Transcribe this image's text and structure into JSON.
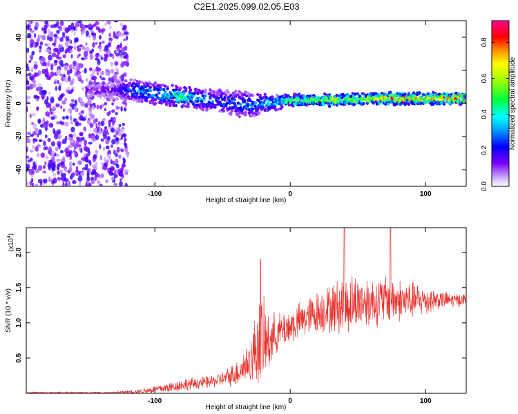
{
  "title": "C2E1.2025.099.02.05.E03",
  "colors": {
    "snr_line": "#e8322e",
    "rainbow_low": "#d9c2ff",
    "rainbow_high": "#ff0080"
  },
  "chart_data": [
    {
      "type": "heatmap",
      "name": "spectrogram",
      "xlabel": "Height of straight line (km)",
      "ylabel": "Frequency (Hz)",
      "xlim": [
        -195,
        130
      ],
      "ylim": [
        -50,
        50
      ],
      "x_ticks": [
        -100,
        0,
        100
      ],
      "y_ticks": [
        -40,
        -20,
        0,
        20,
        40
      ],
      "grid": false,
      "ridge": {
        "x": [
          -150,
          -130,
          -115,
          -100,
          -90,
          -80,
          -70,
          -60,
          -50,
          -40,
          -30,
          -20,
          -10,
          0,
          20,
          40,
          60,
          80,
          100,
          120,
          130
        ],
        "freq": [
          8,
          8,
          8,
          6,
          5,
          4,
          3,
          2,
          1,
          0,
          -1,
          0,
          1,
          2,
          2,
          2,
          3,
          3,
          3,
          3,
          3
        ],
        "halfwidth": [
          3,
          4,
          6,
          6,
          6,
          6,
          6,
          6,
          7,
          8,
          7,
          5,
          4,
          3,
          3,
          3,
          3,
          3,
          3,
          3,
          3
        ],
        "peak_amp": [
          0.15,
          0.2,
          0.35,
          0.4,
          0.45,
          0.5,
          0.4,
          0.35,
          0.3,
          0.3,
          0.35,
          0.4,
          0.45,
          0.6,
          0.65,
          0.7,
          0.8,
          0.85,
          0.85,
          0.9,
          0.9
        ]
      },
      "noise_region_x": [
        -195,
        -120
      ],
      "colorbar": {
        "label": "Normalized spectral amplitude",
        "range": [
          0,
          0.92
        ],
        "ticks": [
          0.0,
          0.2,
          0.4,
          0.6,
          0.8
        ]
      }
    },
    {
      "type": "line",
      "name": "snr",
      "xlabel": "Height of straight line (km)",
      "ylabel": "SNR (10 * v/v)",
      "multiplier_label": "(x10",
      "multiplier_exp": "4",
      "y_unit_scale": 10000,
      "xlim": [
        -195,
        130
      ],
      "ylim": [
        0,
        2.35
      ],
      "x_ticks": [
        -100,
        0,
        100
      ],
      "y_ticks": [
        0.5,
        1.0,
        1.5,
        2.0
      ],
      "y_tick_labels": [
        "0.5",
        "1.0",
        "1.5",
        "2.0"
      ],
      "grid": false,
      "envelope": {
        "x": [
          -195,
          -130,
          -110,
          -90,
          -80,
          -60,
          -50,
          -40,
          -30,
          -25,
          -22,
          -18,
          -10,
          0,
          10,
          20,
          30,
          40,
          50,
          60,
          70,
          80,
          90,
          100,
          110,
          120,
          130
        ],
        "mean": [
          0.01,
          0.01,
          0.03,
          0.08,
          0.12,
          0.16,
          0.2,
          0.28,
          0.45,
          0.65,
          0.75,
          0.7,
          0.85,
          0.95,
          1.05,
          1.15,
          1.2,
          1.25,
          1.3,
          1.3,
          1.32,
          1.32,
          1.32,
          1.32,
          1.33,
          1.32,
          1.33
        ],
        "spread": [
          0.01,
          0.01,
          0.04,
          0.09,
          0.1,
          0.1,
          0.12,
          0.2,
          0.35,
          0.6,
          0.8,
          0.6,
          0.3,
          0.3,
          0.3,
          0.35,
          0.4,
          0.5,
          0.45,
          0.4,
          0.4,
          0.35,
          0.3,
          0.25,
          0.15,
          0.12,
          0.1
        ]
      },
      "peaks": [
        {
          "x": -22,
          "y": 1.9
        },
        {
          "x": 40,
          "y": 2.35
        },
        {
          "x": 74,
          "y": 2.35
        }
      ]
    }
  ]
}
